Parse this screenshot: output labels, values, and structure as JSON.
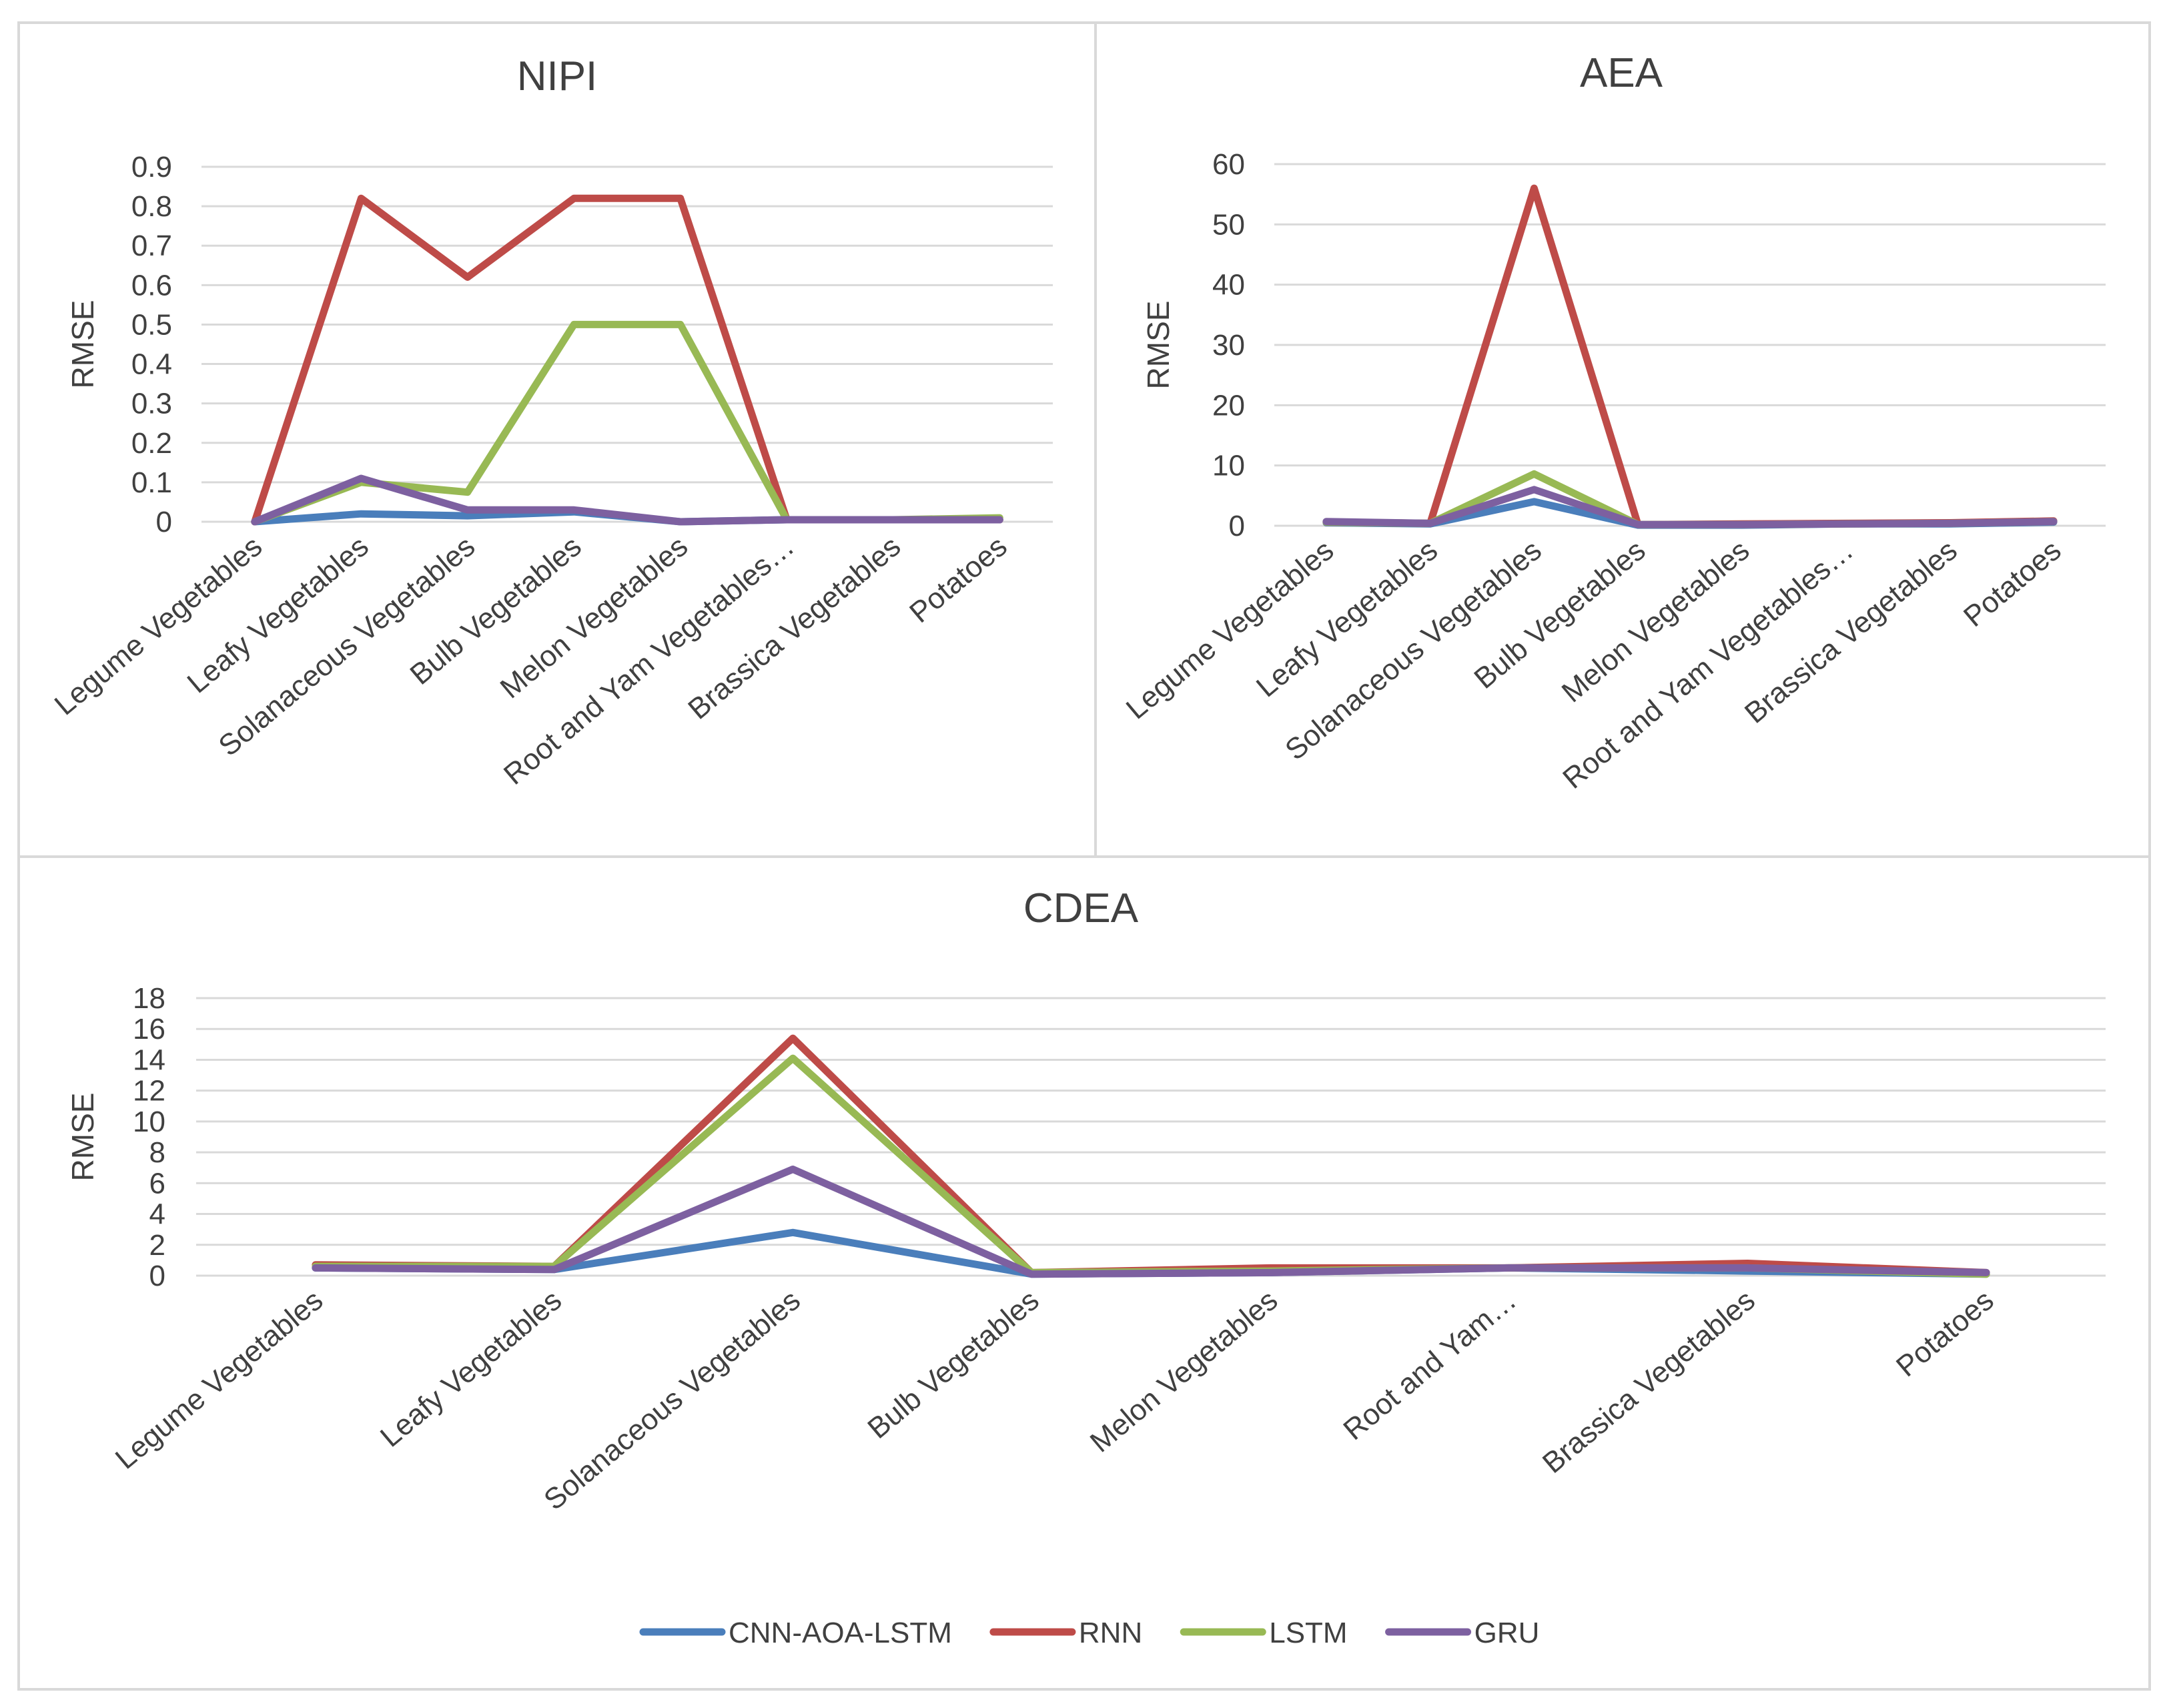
{
  "legend": [
    {
      "name": "CNN-AOA-LSTM",
      "color": "#4A7EBB"
    },
    {
      "name": "RNN",
      "color": "#BE4B48"
    },
    {
      "name": "LSTM",
      "color": "#98B954"
    },
    {
      "name": "GRU",
      "color": "#7D60A0"
    }
  ],
  "chart_data": [
    {
      "type": "line",
      "title": "NIPI",
      "ylabel": "RMSE",
      "xlabel": "",
      "ylim": [
        0,
        0.9
      ],
      "yticks": [
        "0",
        "0.1",
        "0.2",
        "0.3",
        "0.4",
        "0.5",
        "0.6",
        "0.7",
        "0.8",
        "0.9"
      ],
      "grid": true,
      "categories": [
        "Legume Vegetables",
        "Leafy Vegetables",
        "Solanaceous Vegetables",
        "Bulb Vegetables",
        "Melon Vegetables",
        "Root and Yam Vegetables…",
        "Brassica Vegetables",
        "Potatoes"
      ],
      "series": [
        {
          "name": "CNN-AOA-LSTM",
          "values": [
            0.0,
            0.02,
            0.015,
            0.025,
            0.0,
            0.005,
            0.005,
            0.005
          ]
        },
        {
          "name": "RNN",
          "values": [
            0.0,
            0.82,
            0.62,
            0.82,
            0.82,
            0.005,
            0.005,
            0.005
          ]
        },
        {
          "name": "LSTM",
          "values": [
            0.0,
            0.1,
            0.075,
            0.5,
            0.5,
            0.005,
            0.005,
            0.01
          ]
        },
        {
          "name": "GRU",
          "values": [
            0.0,
            0.11,
            0.03,
            0.03,
            0.0,
            0.005,
            0.005,
            0.005
          ]
        }
      ]
    },
    {
      "type": "line",
      "title": "AEA",
      "ylabel": "RMSE",
      "xlabel": "",
      "ylim": [
        0,
        60
      ],
      "yticks": [
        "0",
        "10",
        "20",
        "30",
        "40",
        "50",
        "60"
      ],
      "grid": true,
      "categories": [
        "Legume Vegetables",
        "Leafy Vegetables",
        "Solanaceous Vegetables",
        "Bulb Vegetables",
        "Melon Vegetables",
        "Root and Yam Vegetables…",
        "Brassica Vegetables",
        "Potatoes"
      ],
      "series": [
        {
          "name": "CNN-AOA-LSTM",
          "values": [
            0.5,
            0.3,
            4.0,
            0.1,
            0.1,
            0.3,
            0.3,
            0.6
          ]
        },
        {
          "name": "RNN",
          "values": [
            0.6,
            0.4,
            56.0,
            0.2,
            0.3,
            0.4,
            0.5,
            0.8
          ]
        },
        {
          "name": "LSTM",
          "values": [
            0.6,
            0.4,
            8.6,
            0.2,
            0.2,
            0.3,
            0.4,
            0.7
          ]
        },
        {
          "name": "GRU",
          "values": [
            0.7,
            0.4,
            6.0,
            0.2,
            0.2,
            0.3,
            0.4,
            0.7
          ]
        }
      ]
    },
    {
      "type": "line",
      "title": "CDEA",
      "ylabel": "RMSE",
      "xlabel": "",
      "ylim": [
        0,
        18
      ],
      "yticks": [
        "0",
        "2",
        "4",
        "6",
        "8",
        "10",
        "12",
        "14",
        "16",
        "18"
      ],
      "grid": true,
      "legend_position": "bottom",
      "categories": [
        "Legume Vegetables",
        "Leafy Vegetables",
        "Solanaceous Vegetables",
        "Bulb Vegetables",
        "Melon Vegetables",
        "Root and Yam…",
        "Brassica Vegetables",
        "Potatoes"
      ],
      "series": [
        {
          "name": "CNN-AOA-LSTM",
          "values": [
            0.5,
            0.4,
            2.8,
            0.1,
            0.2,
            0.5,
            0.3,
            0.1
          ]
        },
        {
          "name": "RNN",
          "values": [
            0.7,
            0.6,
            15.4,
            0.2,
            0.5,
            0.5,
            0.8,
            0.2
          ]
        },
        {
          "name": "LSTM",
          "values": [
            0.6,
            0.6,
            14.1,
            0.2,
            0.3,
            0.5,
            0.5,
            0.1
          ]
        },
        {
          "name": "GRU",
          "values": [
            0.5,
            0.4,
            6.9,
            0.1,
            0.2,
            0.5,
            0.5,
            0.2
          ]
        }
      ]
    }
  ]
}
